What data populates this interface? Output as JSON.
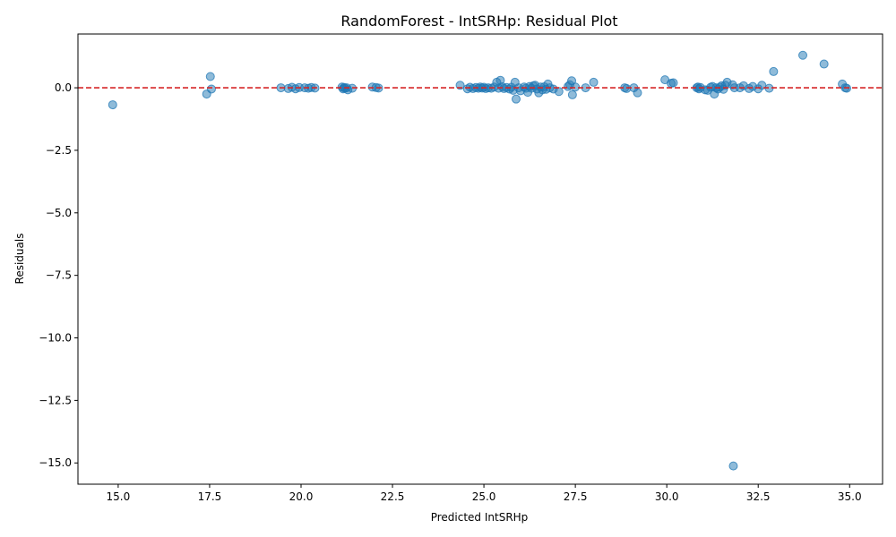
{
  "chart_data": {
    "type": "scatter",
    "title": "RandomForest - IntSRHp: Residual Plot",
    "xlabel": "Predicted IntSRHp",
    "ylabel": "Residuals",
    "xlim": [
      13.9,
      35.9
    ],
    "ylim": [
      -15.85,
      2.15
    ],
    "xticks": [
      15.0,
      17.5,
      20.0,
      22.5,
      25.0,
      27.5,
      30.0,
      32.5,
      35.0
    ],
    "xtick_labels": [
      "15.0",
      "17.5",
      "20.0",
      "22.5",
      "25.0",
      "27.5",
      "30.0",
      "32.5",
      "35.0"
    ],
    "yticks": [
      0.0,
      -2.5,
      -5.0,
      -7.5,
      -10.0,
      -12.5,
      -15.0
    ],
    "ytick_labels": [
      "0.0",
      "−2.5",
      "−5.0",
      "−7.5",
      "−10.0",
      "−12.5",
      "−15.0"
    ],
    "reference_line": {
      "y": 0,
      "style": "dashed",
      "color": "#d62728"
    },
    "point_color": "#1f77b4",
    "point_alpha": 0.5,
    "grid": false,
    "points": [
      [
        14.85,
        -0.68
      ],
      [
        17.42,
        -0.25
      ],
      [
        17.52,
        0.45
      ],
      [
        17.55,
        -0.05
      ],
      [
        19.45,
        0.0
      ],
      [
        19.65,
        -0.03
      ],
      [
        19.75,
        0.02
      ],
      [
        19.85,
        -0.04
      ],
      [
        19.95,
        0.01
      ],
      [
        20.1,
        0.0
      ],
      [
        20.2,
        -0.02
      ],
      [
        20.28,
        0.01
      ],
      [
        20.38,
        -0.01
      ],
      [
        21.12,
        0.03
      ],
      [
        21.15,
        -0.04
      ],
      [
        21.18,
        0.01
      ],
      [
        21.2,
        -0.02
      ],
      [
        21.25,
        0.0
      ],
      [
        21.28,
        -0.08
      ],
      [
        21.4,
        -0.02
      ],
      [
        21.95,
        0.03
      ],
      [
        22.05,
        0.01
      ],
      [
        22.12,
        -0.01
      ],
      [
        24.35,
        0.1
      ],
      [
        24.55,
        -0.04
      ],
      [
        24.62,
        0.02
      ],
      [
        24.7,
        -0.03
      ],
      [
        24.78,
        0.01
      ],
      [
        24.85,
        -0.02
      ],
      [
        24.9,
        0.03
      ],
      [
        24.95,
        -0.01
      ],
      [
        25.0,
        0.02
      ],
      [
        25.05,
        -0.03
      ],
      [
        25.12,
        0.0
      ],
      [
        25.2,
        -0.02
      ],
      [
        25.28,
        0.03
      ],
      [
        25.35,
        0.22
      ],
      [
        25.4,
        -0.02
      ],
      [
        25.45,
        0.3
      ],
      [
        25.5,
        0.04
      ],
      [
        25.55,
        -0.03
      ],
      [
        25.62,
        0.01
      ],
      [
        25.7,
        -0.05
      ],
      [
        25.75,
        0.02
      ],
      [
        25.8,
        -0.1
      ],
      [
        25.85,
        0.22
      ],
      [
        25.88,
        -0.45
      ],
      [
        25.95,
        0.0
      ],
      [
        26.0,
        -0.12
      ],
      [
        26.1,
        0.03
      ],
      [
        26.15,
        -0.02
      ],
      [
        26.2,
        -0.18
      ],
      [
        26.25,
        0.05
      ],
      [
        26.3,
        -0.02
      ],
      [
        26.35,
        0.08
      ],
      [
        26.4,
        0.1
      ],
      [
        26.45,
        -0.05
      ],
      [
        26.5,
        -0.2
      ],
      [
        26.55,
        0.03
      ],
      [
        26.6,
        -0.08
      ],
      [
        26.65,
        0.04
      ],
      [
        26.7,
        -0.06
      ],
      [
        26.75,
        0.15
      ],
      [
        26.8,
        0.0
      ],
      [
        26.9,
        -0.05
      ],
      [
        27.05,
        -0.15
      ],
      [
        27.3,
        0.05
      ],
      [
        27.35,
        0.12
      ],
      [
        27.4,
        0.28
      ],
      [
        27.42,
        -0.28
      ],
      [
        27.5,
        0.03
      ],
      [
        27.78,
        0.0
      ],
      [
        28.0,
        0.22
      ],
      [
        28.85,
        0.0
      ],
      [
        28.9,
        -0.03
      ],
      [
        29.1,
        0.0
      ],
      [
        29.2,
        -0.2
      ],
      [
        29.95,
        0.32
      ],
      [
        30.12,
        0.18
      ],
      [
        30.18,
        0.2
      ],
      [
        30.82,
        0.0
      ],
      [
        30.85,
        0.03
      ],
      [
        30.88,
        -0.04
      ],
      [
        30.92,
        0.01
      ],
      [
        31.05,
        -0.08
      ],
      [
        31.12,
        -0.1
      ],
      [
        31.2,
        0.02
      ],
      [
        31.25,
        0.05
      ],
      [
        31.3,
        -0.25
      ],
      [
        31.35,
        0.0
      ],
      [
        31.4,
        -0.05
      ],
      [
        31.45,
        0.02
      ],
      [
        31.5,
        0.08
      ],
      [
        31.55,
        -0.06
      ],
      [
        31.6,
        0.1
      ],
      [
        31.65,
        0.22
      ],
      [
        31.8,
        0.12
      ],
      [
        31.85,
        0.0
      ],
      [
        31.82,
        -15.12
      ],
      [
        32.0,
        0.0
      ],
      [
        32.1,
        0.08
      ],
      [
        32.25,
        -0.03
      ],
      [
        32.35,
        0.05
      ],
      [
        32.5,
        -0.04
      ],
      [
        32.6,
        0.1
      ],
      [
        32.8,
        -0.02
      ],
      [
        32.92,
        0.65
      ],
      [
        33.72,
        1.3
      ],
      [
        34.3,
        0.95
      ],
      [
        34.8,
        0.15
      ],
      [
        34.88,
        0.0
      ],
      [
        34.92,
        -0.02
      ]
    ]
  }
}
